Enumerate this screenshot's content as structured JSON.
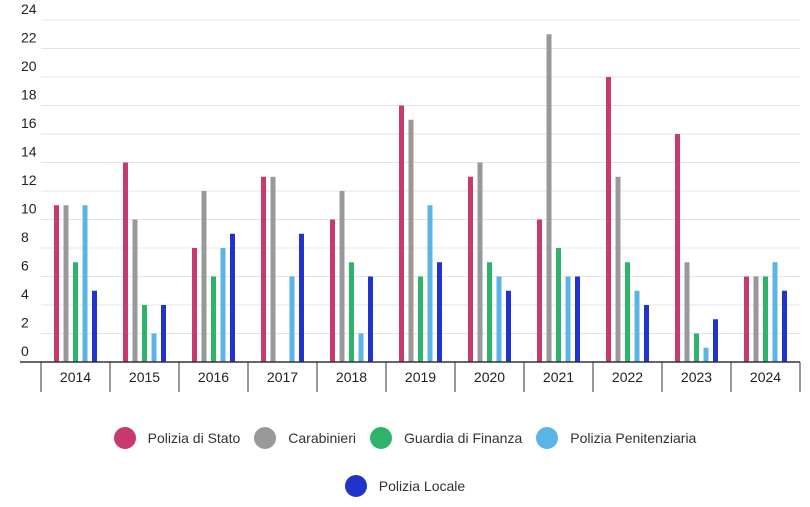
{
  "chart_data": {
    "type": "bar",
    "title": "",
    "xlabel": "",
    "ylabel": "",
    "categories": [
      "2014",
      "2015",
      "2016",
      "2017",
      "2018",
      "2019",
      "2020",
      "2021",
      "2022",
      "2023",
      "2024"
    ],
    "ylim": [
      0,
      24
    ],
    "yticks": [
      0,
      2,
      4,
      6,
      8,
      10,
      12,
      14,
      16,
      18,
      20,
      22,
      24
    ],
    "grid": true,
    "legend_position": "bottom",
    "series": [
      {
        "name": "Polizia di Stato",
        "color": "#c8396f",
        "values": [
          11,
          14,
          8,
          13,
          10,
          18,
          13,
          10,
          20,
          16,
          6
        ]
      },
      {
        "name": "Carabinieri",
        "color": "#999999",
        "values": [
          11,
          10,
          12,
          13,
          12,
          17,
          14,
          23,
          13,
          7,
          6
        ]
      },
      {
        "name": "Guardia di Finanza",
        "color": "#2eb36b",
        "values": [
          7,
          4,
          6,
          0,
          7,
          6,
          7,
          8,
          7,
          2,
          6
        ]
      },
      {
        "name": "Polizia Penitenziaria",
        "color": "#5ab4e5",
        "values": [
          11,
          2,
          8,
          6,
          2,
          11,
          6,
          6,
          5,
          1,
          7
        ]
      },
      {
        "name": "Polizia Locale",
        "color": "#2233cc",
        "values": [
          5,
          4,
          9,
          9,
          6,
          7,
          5,
          6,
          4,
          3,
          5
        ]
      }
    ]
  }
}
